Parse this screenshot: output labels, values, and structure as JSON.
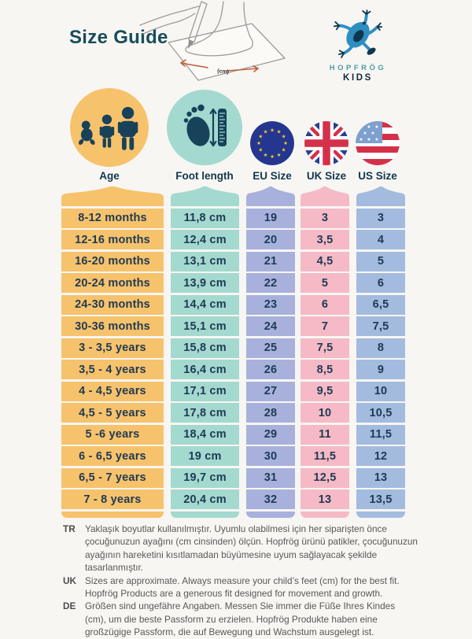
{
  "header": {
    "title": "Size Guide",
    "illustration": {
      "label": "(cm)",
      "arrow_color": "#C2603C"
    },
    "logo": {
      "brand": "HOPFRÖG",
      "sub": "KIDS",
      "frog_color": "#2E8EC0",
      "dark_color": "#0E374F",
      "brand_color": "#4E9AA9"
    }
  },
  "columns": [
    {
      "key": "age",
      "label": "Age",
      "icon": "family-icon",
      "color": "#F7C26C"
    },
    {
      "key": "foot",
      "label": "Foot length",
      "icon": "footprint-ruler-icon",
      "color": "#A4D9CF"
    },
    {
      "key": "eu",
      "label": "EU Size",
      "icon": "eu-flag-icon",
      "color": "#A8B1DC"
    },
    {
      "key": "uk",
      "label": "UK Size",
      "icon": "uk-flag-icon",
      "color": "#F5BAC6"
    },
    {
      "key": "us",
      "label": "US Size",
      "icon": "us-flag-icon",
      "color": "#A3BBDF"
    }
  ],
  "rows": [
    {
      "age": "8-12 months",
      "foot": "11,8 cm",
      "eu": "19",
      "uk": "3",
      "us": "3"
    },
    {
      "age": "12-16 months",
      "foot": "12,4 cm",
      "eu": "20",
      "uk": "3,5",
      "us": "4"
    },
    {
      "age": "16-20 months",
      "foot": "13,1 cm",
      "eu": "21",
      "uk": "4,5",
      "us": "5"
    },
    {
      "age": "20-24 months",
      "foot": "13,9 cm",
      "eu": "22",
      "uk": "5",
      "us": "6"
    },
    {
      "age": "24-30 months",
      "foot": "14,4 cm",
      "eu": "23",
      "uk": "6",
      "us": "6,5"
    },
    {
      "age": "30-36 months",
      "foot": "15,1 cm",
      "eu": "24",
      "uk": "7",
      "us": "7,5"
    },
    {
      "age": "3 - 3,5 years",
      "foot": "15,8 cm",
      "eu": "25",
      "uk": "7,5",
      "us": "8"
    },
    {
      "age": "3,5 - 4 years",
      "foot": "16,4 cm",
      "eu": "26",
      "uk": "8,5",
      "us": "9"
    },
    {
      "age": "4 - 4,5 years",
      "foot": "17,1 cm",
      "eu": "27",
      "uk": "9,5",
      "us": "10"
    },
    {
      "age": "4,5 - 5 years",
      "foot": "17,8 cm",
      "eu": "28",
      "uk": "10",
      "us": "10,5"
    },
    {
      "age": "5 -6 years",
      "foot": "18,4 cm",
      "eu": "29",
      "uk": "11",
      "us": "11,5"
    },
    {
      "age": "6 - 6,5 years",
      "foot": "19 cm",
      "eu": "30",
      "uk": "11,5",
      "us": "12"
    },
    {
      "age": "6,5 - 7 years",
      "foot": "19,7 cm",
      "eu": "31",
      "uk": "12,5",
      "us": "13"
    },
    {
      "age": "7 - 8 years",
      "foot": "20,4 cm",
      "eu": "32",
      "uk": "13",
      "us": "13,5"
    }
  ],
  "footnotes": [
    {
      "lang": "TR",
      "text": "Yaklaşık boyutlar kullanılmıştır. Uyumlu olabilmesi için her siparişten önce çocuğunuzun ayağını (cm cinsinden) ölçün. Hopfrög ürünü patikler, çocuğunuzun ayağının hareketini kısıtlamadan büyümesine uyum sağlayacak şekilde tasarlanmıştır."
    },
    {
      "lang": "UK",
      "text": "Sizes are approximate. Always measure your child’s feet (cm) for the best fit. Hopfrög Products are a generous fit designed for movement and growth."
    },
    {
      "lang": "DE",
      "text": "Größen sind ungefähre Angaben. Messen Sie immer die Füße Ihres Kindes (cm), um die beste Passform zu erzielen. Hopfrög Produkte haben eine großzügige Passform, die auf Bewegung und Wachstum ausgelegt ist."
    }
  ],
  "colors": {
    "background": "#F7F6F2",
    "title_text": "#174D5C",
    "table_text": "#1E3A54",
    "label_text": "#12374E",
    "note_text": "#585858",
    "eu_flag_blue": "#24368F",
    "eu_star_gold": "#F8D12E",
    "uk_red": "#D5304A",
    "uk_blue": "#2B3F8E",
    "us_canton_blue": "#7DA0CE",
    "us_red": "#D5304A"
  },
  "chart_data": {
    "type": "table",
    "title": "Size Guide",
    "columns": [
      "Age",
      "Foot length",
      "EU Size",
      "UK Size",
      "US Size"
    ],
    "rows": [
      [
        "8-12 months",
        "11,8 cm",
        "19",
        "3",
        "3"
      ],
      [
        "12-16 months",
        "12,4 cm",
        "20",
        "3,5",
        "4"
      ],
      [
        "16-20 months",
        "13,1 cm",
        "21",
        "4,5",
        "5"
      ],
      [
        "20-24 months",
        "13,9 cm",
        "22",
        "5",
        "6"
      ],
      [
        "24-30 months",
        "14,4 cm",
        "23",
        "6",
        "6,5"
      ],
      [
        "30-36 months",
        "15,1 cm",
        "24",
        "7",
        "7,5"
      ],
      [
        "3 - 3,5 years",
        "15,8 cm",
        "25",
        "7,5",
        "8"
      ],
      [
        "3,5 - 4 years",
        "16,4 cm",
        "26",
        "8,5",
        "9"
      ],
      [
        "4 - 4,5 years",
        "17,1 cm",
        "27",
        "9,5",
        "10"
      ],
      [
        "4,5 - 5 years",
        "17,8 cm",
        "28",
        "10",
        "10,5"
      ],
      [
        "5 -6 years",
        "18,4 cm",
        "29",
        "11",
        "11,5"
      ],
      [
        "6 - 6,5 years",
        "19 cm",
        "30",
        "11,5",
        "12"
      ],
      [
        "6,5 - 7 years",
        "19,7 cm",
        "31",
        "12,5",
        "13"
      ],
      [
        "7 - 8 years",
        "20,4 cm",
        "32",
        "13",
        "13,5"
      ]
    ]
  }
}
